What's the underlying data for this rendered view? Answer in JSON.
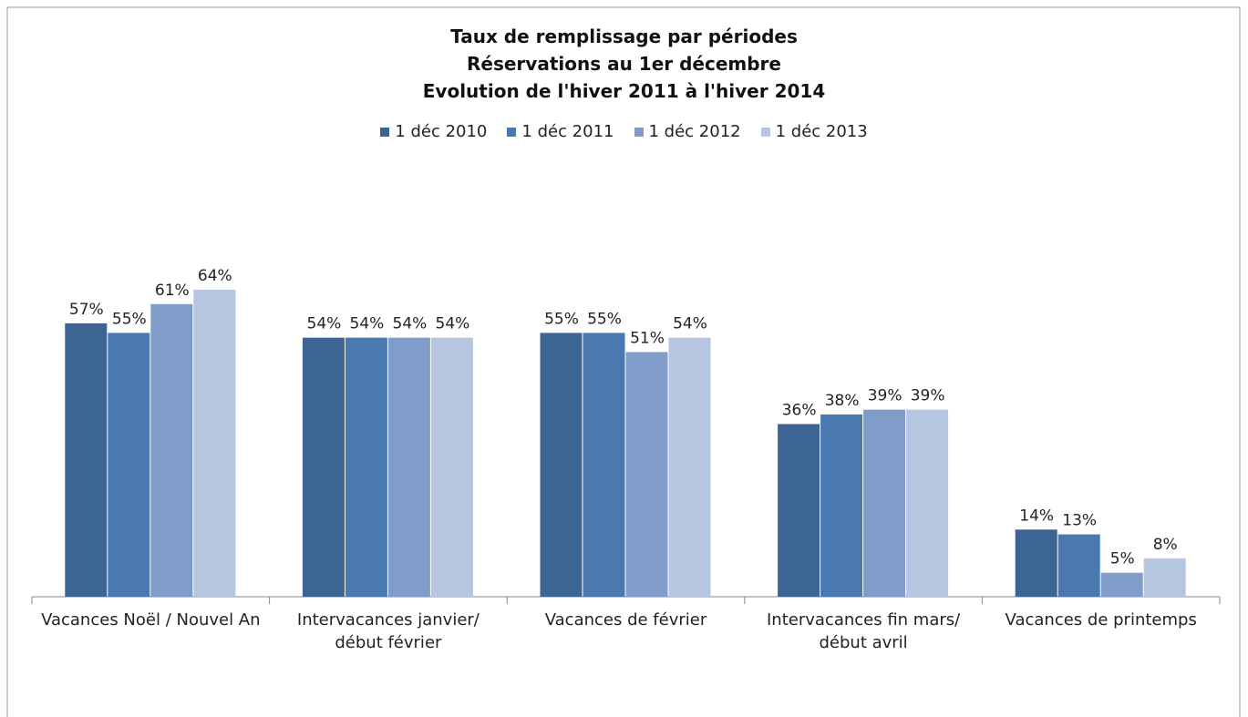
{
  "chart_data": {
    "type": "bar",
    "title": [
      "Taux de remplissage par périodes",
      "Réservations au 1er décembre",
      "Evolution de l'hiver 2011 à l'hiver 2014"
    ],
    "categories": [
      "Vacances Noël / Nouvel An",
      "Intervacances janvier/ début février",
      "Vacances de février",
      "Intervacances fin mars/ début avril",
      "Vacances de printemps"
    ],
    "series": [
      {
        "name": "1 déc 2010",
        "color": "#3d6594",
        "values": [
          57,
          54,
          55,
          36,
          14
        ],
        "value_labels": [
          "57%",
          "54%",
          "55%",
          "36%",
          "14%"
        ]
      },
      {
        "name": "1 déc 2011",
        "color": "#4a78b0",
        "values": [
          55,
          54,
          55,
          38,
          13
        ],
        "value_labels": [
          "55%",
          "54%",
          "55%",
          "38%",
          "13%"
        ]
      },
      {
        "name": "1 déc 2012",
        "color": "#7f9dc8",
        "values": [
          61,
          54,
          51,
          39,
          5
        ],
        "value_labels": [
          "61%",
          "54%",
          "51%",
          "39%",
          "5%"
        ]
      },
      {
        "name": "1 déc 2013",
        "color": "#b6c5e0",
        "values": [
          64,
          54,
          54,
          39,
          8
        ],
        "value_labels": [
          "64%",
          "54%",
          "54%",
          "39%",
          "8%"
        ]
      }
    ],
    "legend": "top"
  }
}
